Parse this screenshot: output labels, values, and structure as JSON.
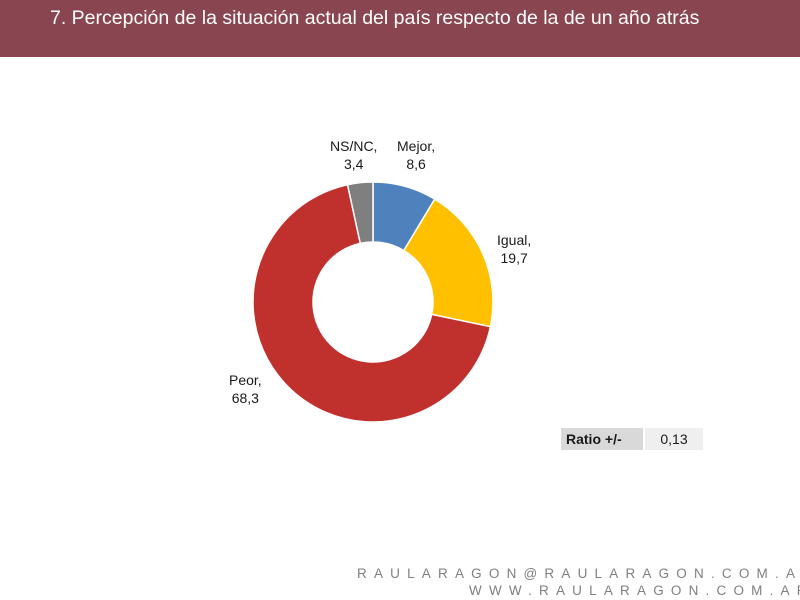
{
  "header": {
    "title": "7. Percepción de la situación actual del país respecto de la de un año atrás"
  },
  "chart_data": {
    "type": "pie",
    "title": "",
    "slices": [
      {
        "label": "Mejor,",
        "value": 8.6,
        "value_text": "8,6",
        "color": "#4f81bd"
      },
      {
        "label": "Igual,",
        "value": 19.7,
        "value_text": "19,7",
        "color": "#ffc000"
      },
      {
        "label": "Peor,",
        "value": 68.3,
        "value_text": "68,3",
        "color": "#c0302c"
      },
      {
        "label": "NS/NC,",
        "value": 3.4,
        "value_text": "3,4",
        "color": "#7f7f7f"
      }
    ]
  },
  "ratio": {
    "label": "Ratio +/-",
    "value": "0,13"
  },
  "footer": {
    "email": "RAULARAGON@RAULARAGON.COM.AR",
    "web": "WWW.RAULARAGON.COM.AR"
  }
}
